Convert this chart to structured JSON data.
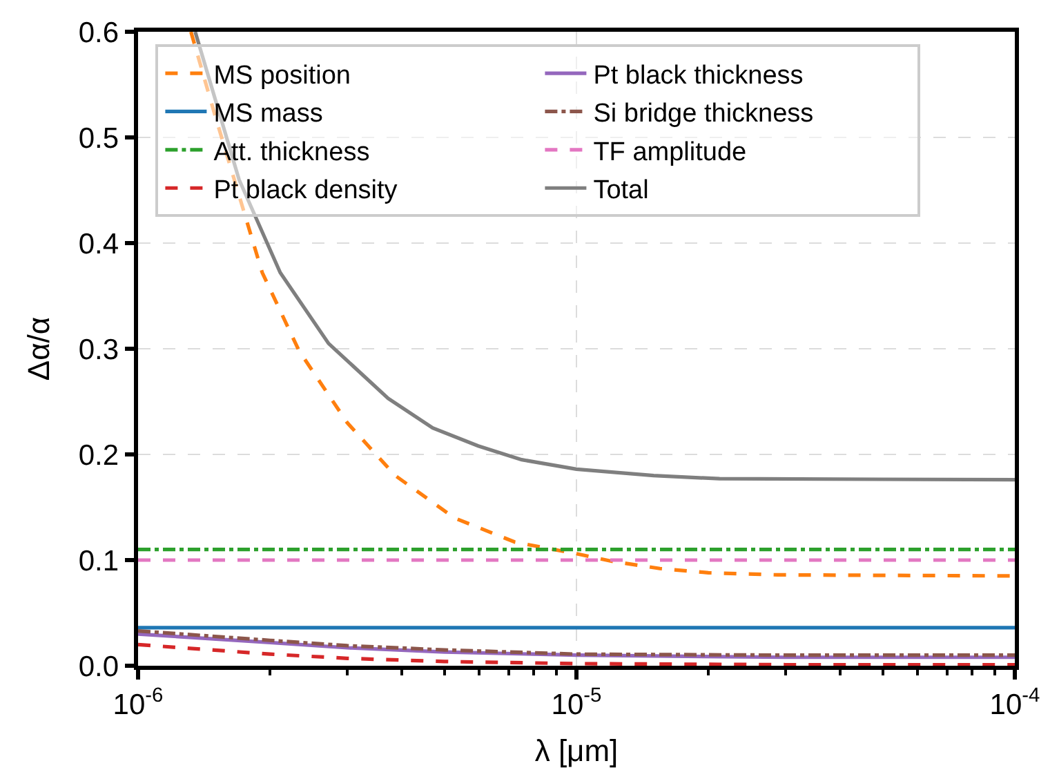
{
  "chart_data": {
    "type": "line",
    "xlabel": "λ [μm]",
    "ylabel": "Δα/α",
    "log": "x",
    "grid": true,
    "legend": "top left",
    "xlim": [
      1e-06,
      0.0001
    ],
    "ylim": [
      0,
      0.6
    ],
    "xticks": [
      {
        "value": 1e-06,
        "label": "10$^{-6}$"
      },
      {
        "value": 2e-06,
        "label": null
      },
      {
        "value": 3e-06,
        "label": null
      },
      {
        "value": 4e-06,
        "label": null
      },
      {
        "value": 5e-06,
        "label": null
      },
      {
        "value": 6e-06,
        "label": null
      },
      {
        "value": 7e-06,
        "label": null
      },
      {
        "value": 8e-06,
        "label": null
      },
      {
        "value": 9e-06,
        "label": null
      },
      {
        "value": 1e-05,
        "label": "10$^{-5}$"
      },
      {
        "value": 2e-05,
        "label": null
      },
      {
        "value": 3e-05,
        "label": null
      },
      {
        "value": 4e-05,
        "label": null
      },
      {
        "value": 5e-05,
        "label": null
      },
      {
        "value": 6e-05,
        "label": null
      },
      {
        "value": 7e-05,
        "label": null
      },
      {
        "value": 8e-05,
        "label": null
      },
      {
        "value": 9e-05,
        "label": null
      },
      {
        "value": 0.0001,
        "label": "10$^{-4}$"
      }
    ],
    "yticks": [
      {
        "value": 0,
        "label": "0.0"
      },
      {
        "value": 0.1,
        "label": "0.1"
      },
      {
        "value": 0.2,
        "label": "0.2"
      },
      {
        "value": 0.3,
        "label": "0.3"
      },
      {
        "value": 0.4,
        "label": "0.4"
      },
      {
        "value": 0.5,
        "label": "0.5"
      },
      {
        "value": 0.6,
        "label": "0.6"
      }
    ],
    "series": [
      {
        "name": "MS position",
        "color": "#ff7f0e",
        "line_style": "dashed",
        "x": [
          1.32e-06,
          1.5e-06,
          1.92e-06,
          2.33e-06,
          3e-06,
          3.86e-06,
          5.26e-06,
          7.24e-06,
          1e-05,
          1.2e-05,
          1.55e-05,
          2e-05,
          2.88e-05,
          0.0001
        ],
        "values": [
          0.6,
          0.52,
          0.372,
          0.298,
          0.23,
          0.18,
          0.14,
          0.117,
          0.106,
          0.099,
          0.092,
          0.088,
          0.086,
          0.085
        ]
      },
      {
        "name": "MS mass",
        "color": "#1f77b4",
        "line_style": "solid",
        "x": [
          1e-06,
          0.0001
        ],
        "values": [
          0.036,
          0.036
        ]
      },
      {
        "name": "Att. thickness",
        "color": "#2ca02c",
        "line_style": "dashdot",
        "x": [
          1e-06,
          0.0001
        ],
        "values": [
          0.11,
          0.11
        ]
      },
      {
        "name": "Pt black density",
        "color": "#d62728",
        "line_style": "dashed",
        "x": [
          1e-06,
          2e-06,
          3e-06,
          5e-06,
          1e-05,
          3e-05,
          0.0001
        ],
        "values": [
          0.02,
          0.011,
          0.007,
          0.004,
          0.002,
          0.001,
          0.001
        ]
      },
      {
        "name": "Pt black thickness",
        "color": "#9467bd",
        "line_style": "solid",
        "x": [
          1e-06,
          2e-06,
          3e-06,
          5e-06,
          1e-05,
          3e-05,
          0.0001
        ],
        "values": [
          0.03,
          0.022,
          0.017,
          0.013,
          0.01,
          0.008,
          0.008
        ]
      },
      {
        "name": "Si bridge thickness",
        "color": "#8c564b",
        "line_style": "dashdot",
        "x": [
          1e-06,
          2e-06,
          3e-06,
          5e-06,
          1e-05,
          3e-05,
          0.0001
        ],
        "values": [
          0.033,
          0.024,
          0.019,
          0.015,
          0.011,
          0.01,
          0.01
        ]
      },
      {
        "name": "TF amplitude",
        "color": "#e377c2",
        "line_style": "dashed",
        "x": [
          1e-06,
          0.0001
        ],
        "values": [
          0.1,
          0.1
        ]
      },
      {
        "name": "Total",
        "color": "#7f7f7f",
        "line_style": "solid",
        "x": [
          1.35e-06,
          1.7e-06,
          2.11e-06,
          2.72e-06,
          3.72e-06,
          4.7e-06,
          5.97e-06,
          7.5e-06,
          1e-05,
          1.5e-05,
          2.12e-05,
          0.0001
        ],
        "values": [
          0.6,
          0.46,
          0.372,
          0.305,
          0.253,
          0.225,
          0.208,
          0.195,
          0.186,
          0.18,
          0.177,
          0.176
        ]
      }
    ]
  }
}
